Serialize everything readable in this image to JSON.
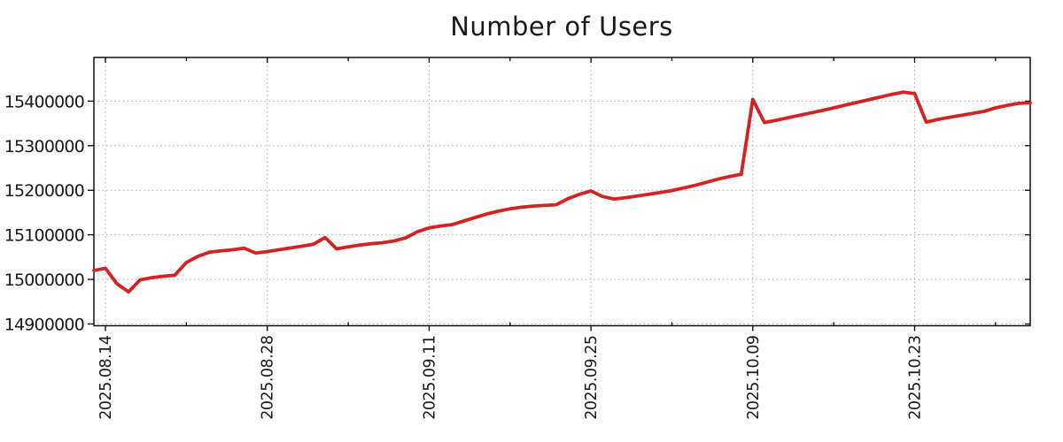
{
  "chart_data": {
    "type": "line",
    "title": "Number of Users",
    "xlabel": "",
    "ylabel": "",
    "grid": true,
    "legend": "none",
    "ylim": [
      14896000,
      15498000
    ],
    "y_ticks": [
      14900000,
      15000000,
      15100000,
      15200000,
      15300000,
      15400000
    ],
    "x_major_tick_labels": [
      "2025.08.14",
      "2025.08.28",
      "2025.09.11",
      "2025.09.25",
      "2025.10.09",
      "2025.10.23"
    ],
    "x_major_tick_indices": [
      1,
      15,
      29,
      43,
      57,
      71
    ],
    "x_minor_tick_indices": [
      8,
      22,
      36,
      50,
      64,
      78
    ],
    "colors": {
      "series": "#d62121",
      "grid": "#a8a8a8",
      "axis": "#000000",
      "text": "#1a1a1a",
      "background": "#ffffff"
    },
    "x": [
      "2025.08.13",
      "2025.08.14",
      "2025.08.15",
      "2025.08.16",
      "2025.08.17",
      "2025.08.18",
      "2025.08.19",
      "2025.08.20",
      "2025.08.21",
      "2025.08.22",
      "2025.08.23",
      "2025.08.24",
      "2025.08.25",
      "2025.08.26",
      "2025.08.27",
      "2025.08.28",
      "2025.08.29",
      "2025.08.30",
      "2025.08.31",
      "2025.09.01",
      "2025.09.02",
      "2025.09.03",
      "2025.09.04",
      "2025.09.05",
      "2025.09.06",
      "2025.09.07",
      "2025.09.08",
      "2025.09.09",
      "2025.09.10",
      "2025.09.11",
      "2025.09.12",
      "2025.09.13",
      "2025.09.14",
      "2025.09.15",
      "2025.09.16",
      "2025.09.17",
      "2025.09.18",
      "2025.09.19",
      "2025.09.20",
      "2025.09.21",
      "2025.09.22",
      "2025.09.23",
      "2025.09.24",
      "2025.09.25",
      "2025.09.26",
      "2025.09.27",
      "2025.09.28",
      "2025.09.29",
      "2025.09.30",
      "2025.10.01",
      "2025.10.02",
      "2025.10.03",
      "2025.10.04",
      "2025.10.05",
      "2025.10.06",
      "2025.10.07",
      "2025.10.08",
      "2025.10.09",
      "2025.10.10",
      "2025.10.11",
      "2025.10.12",
      "2025.10.13",
      "2025.10.14",
      "2025.10.15",
      "2025.10.16",
      "2025.10.17",
      "2025.10.18",
      "2025.10.19",
      "2025.10.20",
      "2025.10.21",
      "2025.10.22",
      "2025.10.23",
      "2025.10.24",
      "2025.10.25",
      "2025.10.26",
      "2025.10.27",
      "2025.10.28",
      "2025.10.29",
      "2025.10.30",
      "2025.10.31",
      "2025.11.01",
      "2025.11.02"
    ],
    "values": [
      15020000,
      15025000,
      14990000,
      14972000,
      14999000,
      15004000,
      15007000,
      15009500,
      15038000,
      15052000,
      15061000,
      15064000,
      15066500,
      15070000,
      15059000,
      15062500,
      15066500,
      15070500,
      15074500,
      15079000,
      15094000,
      15068500,
      15073000,
      15077000,
      15080000,
      15082500,
      15086500,
      15093500,
      15107000,
      15115500,
      15120000,
      15123000,
      15131000,
      15139000,
      15147000,
      15153000,
      15158500,
      15162000,
      15164500,
      15166000,
      15167500,
      15181000,
      15191000,
      15198500,
      15186000,
      15180500,
      15183500,
      15187000,
      15191000,
      15195000,
      15199500,
      15205000,
      15211000,
      15218000,
      15225000,
      15231000,
      15236000,
      15404000,
      15352000,
      15357000,
      15362500,
      15368000,
      15373500,
      15379000,
      15385000,
      15391000,
      15397000,
      15403000,
      15409000,
      15415000,
      15420000,
      15417000,
      15353000,
      15359000,
      15363500,
      15368000,
      15372500,
      15377000,
      15385000,
      15390500,
      15395000,
      15396000
    ]
  }
}
